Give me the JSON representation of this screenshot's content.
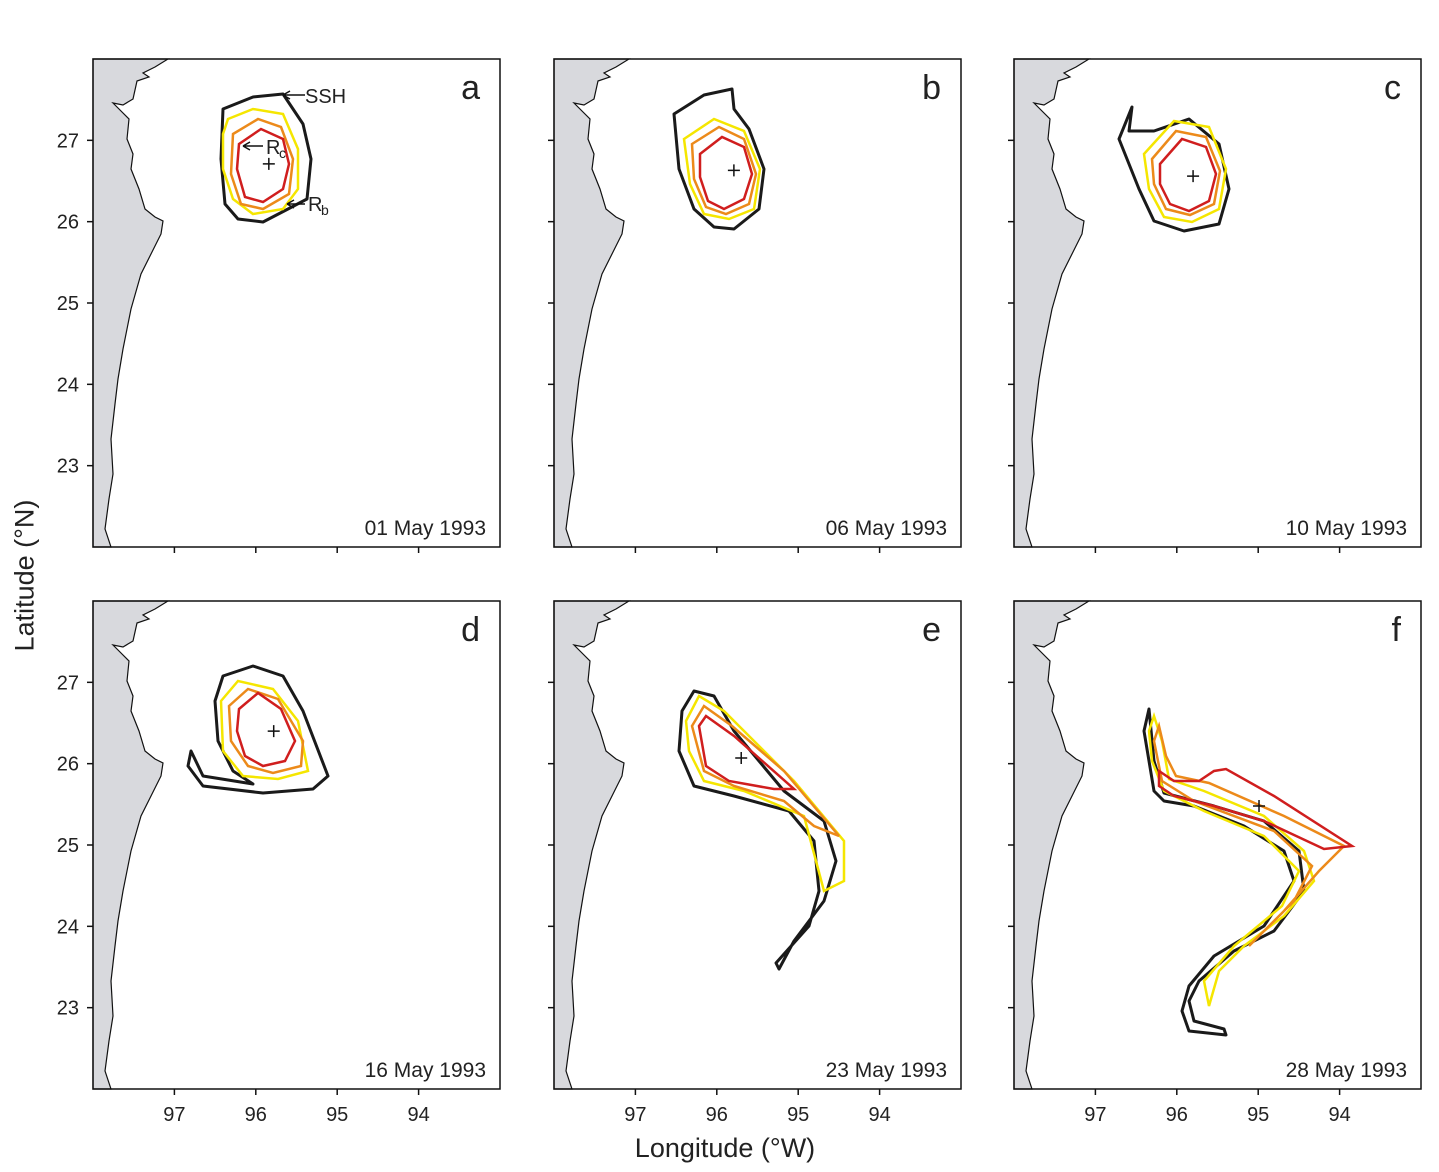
{
  "figure": {
    "ylabel": "Latitude (°N)",
    "xlabel": "Longitude (°W)",
    "lat_ticks": [
      "27",
      "26",
      "25",
      "24",
      "23"
    ],
    "lon_ticks": [
      "97",
      "96",
      "95",
      "94"
    ],
    "lon_range_W": [
      98,
      93
    ],
    "lat_range_N": [
      22,
      28
    ],
    "colors": {
      "ssh": "#1a1a1a",
      "yellow": "#f5e600",
      "orange": "#ec8a1a",
      "red": "#d01e1e",
      "land": "#d8d9dd"
    },
    "annotations": {
      "ssh": "SSH",
      "rc": "R",
      "rc_sub": "c",
      "rb": "R",
      "rb_sub": "b"
    },
    "panels": [
      {
        "label": "a",
        "date": "01 May 1993",
        "center": [
          95.84,
          26.71
        ]
      },
      {
        "label": "b",
        "date": "06 May 1993",
        "center": [
          95.79,
          26.63
        ]
      },
      {
        "label": "c",
        "date": "10 May 1993",
        "center": [
          95.8,
          26.56
        ]
      },
      {
        "label": "d",
        "date": "16 May 1993",
        "center": [
          95.78,
          26.4
        ]
      },
      {
        "label": "e",
        "date": "23 May 1993",
        "center": [
          95.7,
          26.07
        ]
      },
      {
        "label": "f",
        "date": "28 May 1993",
        "center": [
          94.99,
          25.48
        ]
      }
    ]
  }
}
